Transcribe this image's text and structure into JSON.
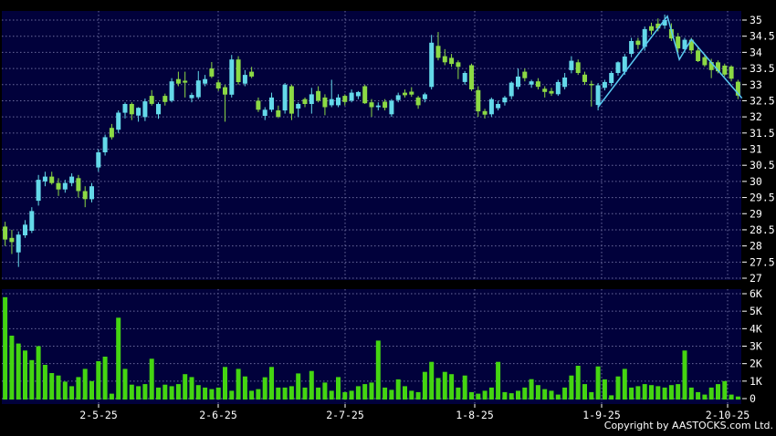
{
  "copyright": "Copyright by AASTOCKS.com Ltd.",
  "colors": {
    "page_background": "#000000",
    "panel_background": "#01013B",
    "grid": "#6A6A9C",
    "up_candle": "#64D9E9",
    "down_candle": "#8CD944",
    "volume_bar": "#44D511",
    "overlay_line": "#58C8F0",
    "axis_text": "#FFFFFF"
  },
  "chart_data": [
    {
      "type": "candlestick",
      "panel": "price",
      "title": "",
      "legend_position": "none",
      "grid": "on",
      "y_axis": {
        "min": 27,
        "max": 35,
        "step": 0.5,
        "labels": [
          "35",
          "34.5",
          "34",
          "33.5",
          "33",
          "32.5",
          "32",
          "31.5",
          "31",
          "30.5",
          "30",
          "29.5",
          "29",
          "28.5",
          "28",
          "27.5",
          "27"
        ]
      },
      "x_axis": {
        "tick_labels": [
          {
            "label": "2-5-25",
            "index": 14
          },
          {
            "label": "2-6-25",
            "index": 32
          },
          {
            "label": "2-7-25",
            "index": 51
          },
          {
            "label": "1-8-25",
            "index": 70.5
          },
          {
            "label": "1-9-25",
            "index": 89.5
          },
          {
            "label": "2-10-25",
            "index": 108.5
          }
        ]
      },
      "ohlc": [
        [
          28.6,
          28.75,
          28.0,
          28.2
        ],
        [
          28.25,
          28.5,
          27.75,
          28.12
        ],
        [
          27.8,
          28.45,
          27.35,
          28.35
        ],
        [
          28.33,
          28.8,
          28.25,
          28.66
        ],
        [
          28.47,
          29.2,
          28.4,
          29.08
        ],
        [
          29.4,
          30.2,
          29.25,
          30.05
        ],
        [
          30.0,
          30.3,
          29.85,
          30.15
        ],
        [
          30.15,
          30.3,
          29.9,
          29.95
        ],
        [
          29.95,
          30.1,
          29.55,
          29.75
        ],
        [
          29.75,
          30.05,
          29.65,
          29.95
        ],
        [
          29.95,
          30.25,
          29.85,
          30.15
        ],
        [
          30.1,
          30.2,
          29.5,
          29.7
        ],
        [
          29.7,
          29.85,
          29.2,
          29.45
        ],
        [
          29.45,
          29.95,
          29.35,
          29.85
        ],
        [
          30.43,
          31.0,
          30.3,
          30.9
        ],
        [
          30.9,
          31.45,
          30.8,
          31.37
        ],
        [
          31.66,
          31.78,
          31.3,
          31.37
        ],
        [
          31.6,
          32.2,
          31.5,
          32.13
        ],
        [
          32.13,
          32.45,
          31.95,
          32.4
        ],
        [
          32.4,
          32.45,
          31.9,
          32.08
        ],
        [
          32.04,
          32.3,
          31.85,
          32.28
        ],
        [
          31.99,
          32.57,
          31.87,
          32.48
        ],
        [
          32.65,
          32.83,
          32.35,
          32.4
        ],
        [
          32.08,
          32.45,
          31.94,
          32.4
        ],
        [
          32.65,
          32.72,
          32.35,
          32.46
        ],
        [
          32.5,
          33.2,
          32.45,
          33.1
        ],
        [
          33.17,
          33.4,
          32.95,
          33.03
        ],
        [
          33.12,
          33.4,
          32.6,
          33.06
        ],
        [
          32.58,
          32.75,
          32.45,
          32.68
        ],
        [
          32.61,
          33.42,
          32.55,
          33.13
        ],
        [
          33.03,
          33.3,
          32.95,
          33.17
        ],
        [
          33.5,
          33.7,
          33.2,
          33.25
        ],
        [
          33.07,
          33.15,
          32.8,
          32.88
        ],
        [
          32.92,
          33.0,
          31.85,
          32.69
        ],
        [
          32.69,
          33.92,
          32.6,
          33.78
        ],
        [
          33.78,
          33.88,
          33.0,
          33.08
        ],
        [
          33.03,
          33.45,
          32.95,
          33.3
        ],
        [
          33.4,
          33.55,
          33.2,
          33.25
        ],
        [
          32.5,
          32.6,
          32.15,
          32.22
        ],
        [
          32.03,
          32.3,
          31.9,
          32.22
        ],
        [
          32.22,
          32.75,
          32.15,
          32.6
        ],
        [
          32.2,
          32.35,
          31.96,
          32.0
        ],
        [
          32.2,
          33.05,
          32.1,
          33.0
        ],
        [
          32.95,
          33.0,
          31.9,
          32.1
        ],
        [
          32.26,
          32.45,
          32.0,
          32.4
        ],
        [
          32.55,
          32.6,
          32.3,
          32.4
        ],
        [
          32.4,
          32.9,
          32.1,
          32.7
        ],
        [
          32.8,
          32.95,
          32.45,
          32.5
        ],
        [
          32.6,
          32.7,
          32.05,
          32.3
        ],
        [
          32.36,
          33.15,
          32.3,
          32.55
        ],
        [
          32.36,
          32.7,
          32.3,
          32.6
        ],
        [
          32.65,
          32.7,
          32.35,
          32.46
        ],
        [
          32.5,
          32.85,
          32.45,
          32.75
        ],
        [
          32.64,
          32.8,
          32.55,
          32.77
        ],
        [
          32.95,
          33.0,
          32.4,
          32.42
        ],
        [
          32.45,
          32.55,
          32.0,
          32.3
        ],
        [
          32.3,
          32.45,
          32.2,
          32.35
        ],
        [
          32.47,
          32.55,
          32.2,
          32.28
        ],
        [
          32.08,
          32.55,
          32.0,
          32.5
        ],
        [
          32.52,
          32.75,
          32.45,
          32.67
        ],
        [
          32.75,
          32.85,
          32.6,
          32.67
        ],
        [
          32.78,
          32.92,
          32.62,
          32.69
        ],
        [
          32.6,
          32.65,
          32.25,
          32.36
        ],
        [
          32.55,
          32.75,
          32.45,
          32.7
        ],
        [
          32.93,
          34.54,
          32.85,
          34.3
        ],
        [
          34.2,
          34.63,
          33.75,
          33.83
        ],
        [
          33.88,
          34.1,
          33.6,
          33.69
        ],
        [
          33.83,
          33.95,
          33.55,
          33.64
        ],
        [
          33.69,
          33.75,
          33.17,
          33.55
        ],
        [
          33.08,
          33.42,
          33.0,
          33.36
        ],
        [
          33.6,
          33.65,
          32.8,
          32.85
        ],
        [
          32.83,
          32.95,
          32.0,
          32.17
        ],
        [
          32.18,
          32.25,
          31.95,
          32.07
        ],
        [
          32.08,
          32.6,
          32.0,
          32.55
        ],
        [
          32.27,
          32.5,
          32.2,
          32.4
        ],
        [
          32.45,
          32.65,
          32.35,
          32.6
        ],
        [
          32.64,
          33.1,
          32.55,
          33.06
        ],
        [
          32.93,
          33.5,
          32.85,
          33.25
        ],
        [
          33.4,
          33.5,
          33.1,
          33.2
        ],
        [
          33.0,
          33.15,
          32.9,
          33.1
        ],
        [
          33.1,
          33.2,
          32.85,
          32.93
        ],
        [
          32.87,
          32.95,
          32.6,
          32.77
        ],
        [
          32.8,
          32.9,
          32.65,
          32.72
        ],
        [
          32.7,
          33.15,
          32.65,
          33.08
        ],
        [
          32.93,
          33.36,
          32.85,
          33.22
        ],
        [
          33.45,
          33.88,
          33.35,
          33.74
        ],
        [
          33.69,
          33.78,
          33.3,
          33.36
        ],
        [
          33.31,
          33.4,
          32.99,
          33.08
        ],
        [
          33.02,
          33.12,
          32.32,
          32.98
        ],
        [
          32.37,
          33.05,
          32.2,
          32.98
        ],
        [
          32.9,
          33.15,
          32.82,
          33.08
        ],
        [
          33.05,
          33.42,
          32.95,
          33.36
        ],
        [
          33.36,
          33.72,
          33.28,
          33.69
        ],
        [
          33.4,
          33.95,
          33.3,
          33.87
        ],
        [
          33.95,
          34.45,
          33.85,
          34.35
        ],
        [
          34.36,
          34.45,
          34.1,
          34.23
        ],
        [
          34.17,
          34.8,
          34.05,
          34.72
        ],
        [
          34.81,
          34.92,
          34.55,
          34.67
        ],
        [
          34.89,
          35.05,
          34.65,
          34.74
        ],
        [
          34.83,
          35.17,
          34.73,
          35.0
        ],
        [
          34.72,
          34.9,
          34.35,
          34.43
        ],
        [
          34.49,
          34.6,
          34.0,
          34.12
        ],
        [
          34.1,
          34.45,
          34.0,
          34.39
        ],
        [
          34.39,
          34.45,
          33.95,
          34.06
        ],
        [
          34.06,
          34.15,
          33.7,
          33.73
        ],
        [
          33.85,
          33.95,
          33.55,
          33.6
        ],
        [
          33.7,
          33.8,
          33.2,
          33.45
        ],
        [
          33.69,
          33.75,
          33.35,
          33.41
        ],
        [
          33.59,
          33.65,
          33.25,
          33.31
        ],
        [
          33.56,
          33.6,
          33.1,
          33.18
        ],
        [
          33.09,
          33.15,
          32.55,
          32.66
        ]
      ],
      "overlay_line": {
        "name": "trend-line",
        "points": [
          [
            89,
            32.3
          ],
          [
            99.4,
            35.12
          ],
          [
            101.2,
            33.78
          ],
          [
            103,
            34.4
          ],
          [
            110.6,
            32.58
          ]
        ]
      }
    },
    {
      "type": "bar",
      "panel": "volume",
      "grid": "on",
      "y_axis": {
        "min": 0,
        "max": 6000,
        "step": 1000,
        "labels": [
          "6K",
          "5K",
          "4K",
          "3K",
          "2K",
          "1K",
          "0"
        ]
      },
      "values_k": [
        5.8,
        3.6,
        3.15,
        2.75,
        2.2,
        3.0,
        1.93,
        1.46,
        1.32,
        0.97,
        0.71,
        1.23,
        1.7,
        1.0,
        2.14,
        2.4,
        0.28,
        4.63,
        1.7,
        0.8,
        0.71,
        0.83,
        2.28,
        0.63,
        0.8,
        0.71,
        0.83,
        1.4,
        1.23,
        0.77,
        0.63,
        0.54,
        0.63,
        1.81,
        0.45,
        1.7,
        1.27,
        0.45,
        0.54,
        1.22,
        1.81,
        0.63,
        0.63,
        0.71,
        1.44,
        0.63,
        1.58,
        0.63,
        0.92,
        0.45,
        1.23,
        0.37,
        0.45,
        0.71,
        0.83,
        0.92,
        3.32,
        0.63,
        0.5,
        1.1,
        0.71,
        0.45,
        0.37,
        1.53,
        2.1,
        1.18,
        1.53,
        1.4,
        0.63,
        1.32,
        0.37,
        0.28,
        0.45,
        0.63,
        2.1,
        0.37,
        0.31,
        0.45,
        0.63,
        1.11,
        0.77,
        0.54,
        0.45,
        0.23,
        0.63,
        1.32,
        1.88,
        0.83,
        0.37,
        1.84,
        1.1,
        0.19,
        1.27,
        1.7,
        0.63,
        0.71,
        0.83,
        0.77,
        0.71,
        0.63,
        0.77,
        0.83,
        2.75,
        0.63,
        0.37,
        0.23,
        0.63,
        0.83,
        1.0,
        0.23,
        0.12
      ]
    }
  ]
}
